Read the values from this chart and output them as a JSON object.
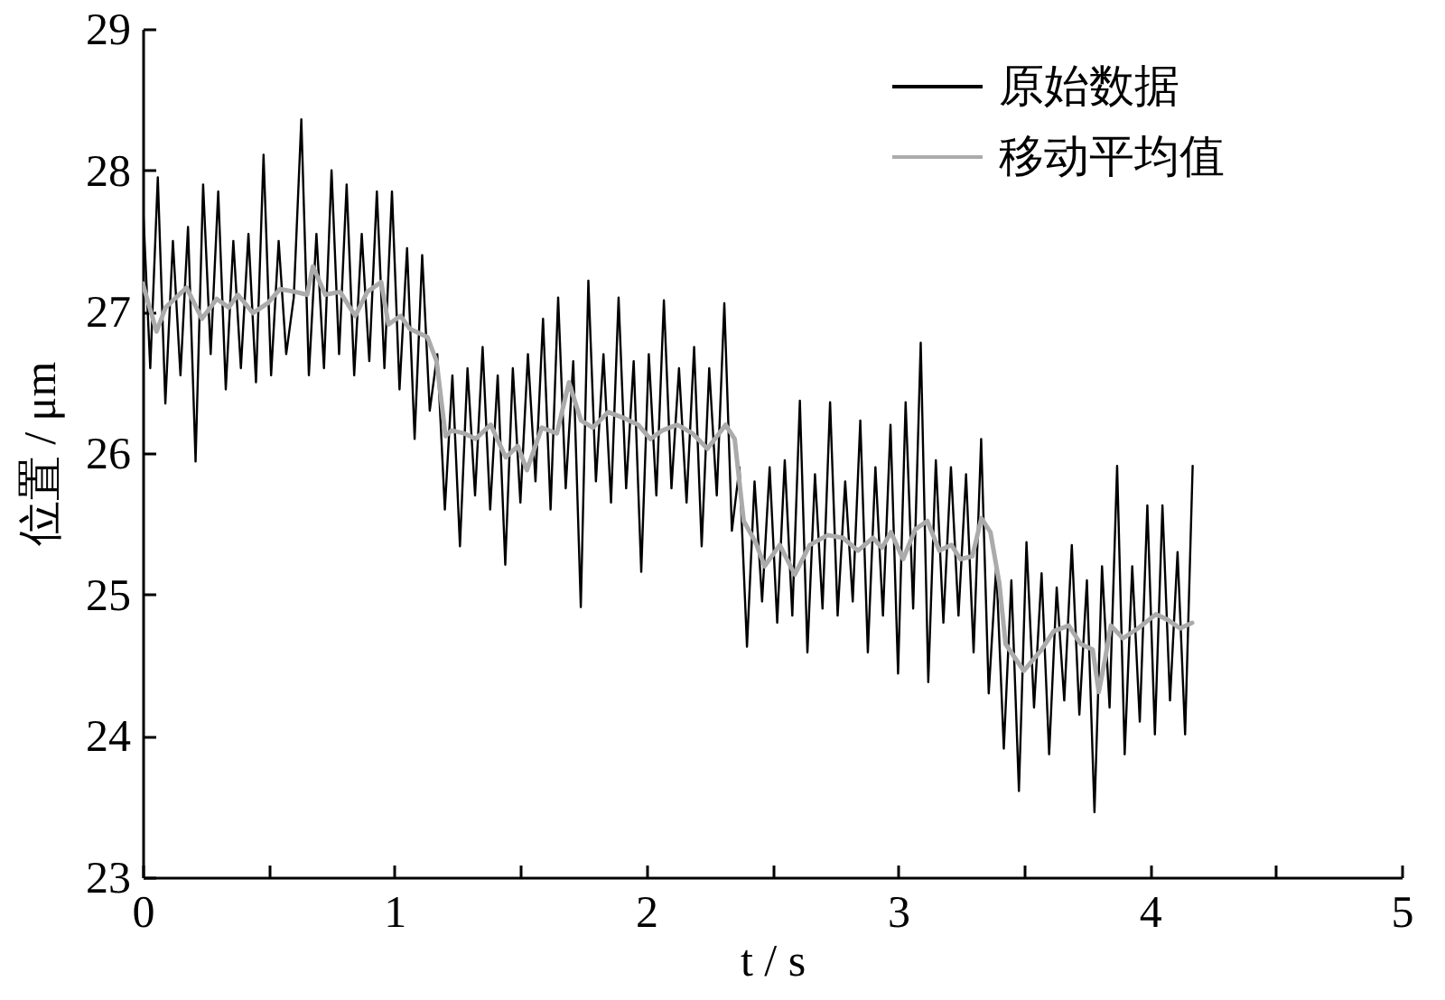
{
  "chart_data": {
    "type": "line",
    "xlabel": "t / s",
    "ylabel": "位置 / μm",
    "xlim": [
      0,
      5
    ],
    "ylim": [
      23,
      29
    ],
    "xticks": [
      0,
      {
        "value": 0.5,
        "label": null
      },
      1,
      {
        "value": 1.5,
        "label": null
      },
      2,
      {
        "value": 2.5,
        "label": null
      },
      3,
      {
        "value": 3.5,
        "label": null
      },
      4,
      {
        "value": 4.5,
        "label": null
      },
      5
    ],
    "yticks": [
      23,
      24,
      25,
      26,
      27,
      28,
      29
    ],
    "legend": "top right",
    "series": [
      {
        "name": "原始数据",
        "color": "#000000",
        "x": [
          0,
          0.03,
          0.06,
          0.09,
          0.12,
          0.15,
          0.18,
          0.21,
          0.24,
          0.27,
          0.3,
          0.33,
          0.36,
          0.39,
          0.42,
          0.45,
          0.48,
          0.51,
          0.54,
          0.57,
          0.6,
          0.63,
          0.66,
          0.69,
          0.72,
          0.75,
          0.78,
          0.81,
          0.84,
          0.87,
          0.9,
          0.93,
          0.96,
          0.99,
          1.02,
          1.05,
          1.08,
          1.11,
          1.14,
          1.17,
          1.2,
          1.23,
          1.26,
          1.29,
          1.32,
          1.35,
          1.38,
          1.41,
          1.44,
          1.47,
          1.5,
          1.53,
          1.56,
          1.59,
          1.62,
          1.65,
          1.68,
          1.71,
          1.74,
          1.77,
          1.8,
          1.83,
          1.86,
          1.89,
          1.92,
          1.95,
          1.98,
          2.01,
          2.04,
          2.07,
          2.1,
          2.13,
          2.16,
          2.19,
          2.22,
          2.25,
          2.28,
          2.31,
          2.34,
          2.37,
          2.4,
          2.43,
          2.46,
          2.49,
          2.52,
          2.55,
          2.58,
          2.61,
          2.64,
          2.67,
          2.7,
          2.73,
          2.76,
          2.79,
          2.82,
          2.85,
          2.88,
          2.91,
          2.94,
          2.97,
          3,
          3.03,
          3.06,
          3.09,
          3.12,
          3.15,
          3.18,
          3.21,
          3.24,
          3.27,
          3.3,
          3.33,
          3.36,
          3.39,
          3.42,
          3.45,
          3.48,
          3.51,
          3.54,
          3.57,
          3.6,
          3.63,
          3.66,
          3.69,
          3.72,
          3.75,
          3.78,
          3.81,
          3.84,
          3.87,
          3.9,
          3.93,
          3.96,
          3.99,
          4.02,
          4.05,
          4.08,
          4.11,
          4.14,
          4.17
        ],
        "values": [
          27.8,
          26.6,
          27.95,
          26.35,
          27.5,
          26.55,
          27.6,
          25.94,
          27.9,
          26.7,
          27.85,
          26.45,
          27.5,
          26.6,
          27.55,
          26.5,
          28.11,
          26.55,
          27.5,
          26.7,
          27.1,
          28.36,
          26.55,
          27.55,
          26.6,
          28.0,
          26.7,
          27.9,
          26.55,
          27.55,
          26.65,
          27.85,
          26.6,
          27.85,
          26.45,
          27.45,
          26.1,
          27.4,
          26.3,
          26.7,
          25.6,
          26.55,
          25.34,
          26.6,
          25.7,
          26.75,
          25.6,
          26.55,
          25.21,
          26.6,
          25.65,
          26.7,
          25.8,
          26.95,
          25.6,
          27.1,
          25.75,
          26.65,
          24.91,
          27.22,
          25.8,
          26.7,
          25.65,
          27.1,
          25.75,
          26.65,
          25.16,
          26.7,
          25.7,
          27.08,
          25.75,
          26.6,
          25.65,
          26.75,
          25.34,
          26.6,
          25.7,
          27.06,
          25.45,
          25.9,
          24.63,
          25.8,
          24.95,
          25.9,
          24.8,
          25.95,
          24.85,
          26.37,
          24.59,
          25.85,
          24.9,
          26.36,
          24.85,
          25.8,
          24.95,
          26.23,
          24.59,
          25.9,
          24.85,
          26.2,
          24.44,
          26.36,
          24.9,
          26.78,
          24.38,
          25.95,
          24.8,
          25.9,
          24.85,
          25.85,
          24.59,
          26.1,
          24.3,
          25.2,
          23.91,
          25.1,
          23.61,
          25.37,
          24.2,
          25.15,
          23.87,
          25.05,
          24.25,
          25.35,
          24.15,
          25.1,
          23.46,
          25.2,
          24.2,
          25.91,
          23.87,
          25.2,
          24.1,
          25.63,
          24.01,
          25.63,
          24.25,
          25.3,
          24.01,
          25.91
        ]
      },
      {
        "name": "移动平均值",
        "color": "#ababab",
        "x": [
          0,
          0.055,
          0.091,
          0.174,
          0.235,
          0.294,
          0.342,
          0.378,
          0.438,
          0.497,
          0.545,
          0.605,
          0.653,
          0.676,
          0.725,
          0.784,
          0.844,
          0.892,
          0.947,
          0.976,
          1.024,
          1.06,
          1.131,
          1.167,
          1.203,
          1.227,
          1.275,
          1.322,
          1.382,
          1.442,
          1.49,
          1.526,
          1.585,
          1.645,
          1.693,
          1.741,
          1.788,
          1.849,
          1.908,
          1.968,
          2.016,
          2.064,
          2.123,
          2.183,
          2.243,
          2.315,
          2.351,
          2.387,
          2.434,
          2.47,
          2.53,
          2.59,
          2.649,
          2.721,
          2.781,
          2.841,
          2.9,
          2.936,
          2.972,
          3.02,
          3.068,
          3.116,
          3.164,
          3.212,
          3.247,
          3.295,
          3.331,
          3.367,
          3.402,
          3.427,
          3.499,
          3.57,
          3.618,
          3.678,
          3.725,
          3.773,
          3.797,
          3.822,
          3.845,
          3.893,
          3.953,
          4.024,
          4.072,
          4.12,
          4.168
        ],
        "values": [
          27.2,
          26.86,
          27.03,
          27.17,
          26.95,
          27.09,
          27.03,
          27.12,
          26.99,
          27.06,
          27.16,
          27.14,
          27.12,
          27.32,
          27.12,
          27.14,
          26.97,
          27.14,
          27.21,
          26.91,
          26.97,
          26.88,
          26.82,
          26.65,
          26.12,
          26.16,
          26.14,
          26.1,
          26.2,
          25.97,
          26.05,
          25.88,
          26.18,
          26.14,
          26.5,
          26.23,
          26.18,
          26.29,
          26.25,
          26.2,
          26.1,
          26.16,
          26.2,
          26.14,
          26.03,
          26.2,
          26.1,
          25.52,
          25.37,
          25.2,
          25.35,
          25.14,
          25.35,
          25.42,
          25.4,
          25.31,
          25.4,
          25.33,
          25.44,
          25.25,
          25.46,
          25.52,
          25.31,
          25.35,
          25.25,
          25.27,
          25.54,
          25.44,
          25.08,
          24.65,
          24.46,
          24.61,
          24.74,
          24.78,
          24.65,
          24.61,
          24.31,
          24.54,
          24.78,
          24.69,
          24.76,
          24.86,
          24.82,
          24.76,
          24.8
        ]
      }
    ]
  }
}
